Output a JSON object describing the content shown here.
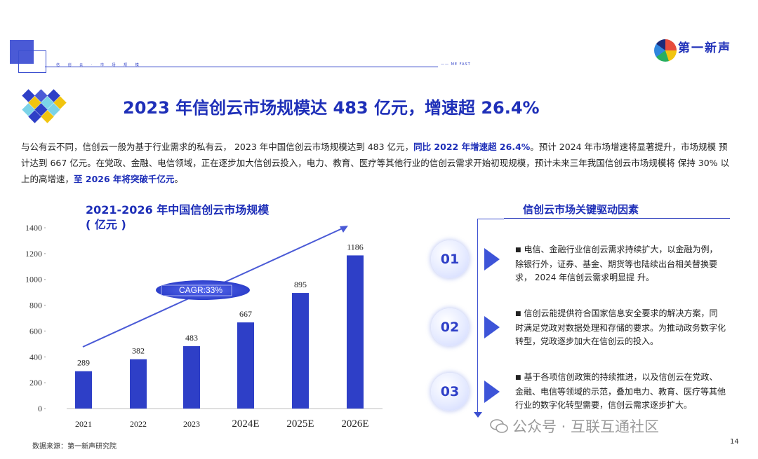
{
  "banner": {
    "text": "信 创 云 · 市 场 规 模",
    "me": "—— ME  FAST"
  },
  "brand": {
    "name": "第一新声"
  },
  "headline": "2023 年信创云市场规模达 483 亿元，增速超 26.4%",
  "intro": {
    "p1": "与公有云不同，信创云一般为基于行业需求的私有云， 2023 年中国信创云市场规模达到 483 亿元，",
    "h1": "同比 2022 年增速超 26.4%",
    "p2": "。预计 2024 年市场增速将显著提升，市场规模 预计达到 667 亿元。在党政、金融、电信领域，正在逐步加大信创云投入，电力、教育、医疗等其他行业的信创云需求开始初现规模，预计未来三年我国信创云市场规模将 保持 30% 以上的高增速，",
    "h2": "至 2026 年将突破千亿元",
    "p3": "。"
  },
  "chart_title": {
    "line1": "2021-2026 年中国信创云市场规模",
    "line2": "( 亿元 )"
  },
  "chart_data": {
    "type": "bar",
    "title": "2021-2026 年中国信创云市场规模 ( 亿元 )",
    "categories": [
      "2021",
      "2022",
      "2023",
      "2024E",
      "2025E",
      "2026E"
    ],
    "values": [
      289,
      382,
      483,
      667,
      895,
      1186
    ],
    "yticks": [
      0,
      200,
      400,
      600,
      800,
      1000,
      1200,
      1400
    ],
    "ylim": [
      0,
      1400
    ],
    "annotation": "CAGR:33%",
    "bar_color": "#2e3fc7",
    "grid": false
  },
  "drivers": {
    "title": "信创云市场关键驱动因素",
    "items": [
      {
        "num": "01",
        "text": "电信、金融行业信创云需求持续扩大，以金融为例，除银行外，证券、基金、期货等也陆续出台相关替换要求， 2024 年信创云需求明显提 升。"
      },
      {
        "num": "02",
        "text": "信创云能提供符合国家信息安全要求的解决方案，同时满足党政对数据处理和存储的要求。为推动政务数字化转型，党政逐步加大在信创云的投入。"
      },
      {
        "num": "03",
        "text": "基于各项信创政策的持续推进，以及信创云在党政、金融、电信等领域的示范，叠加电力、教育、医疗等其他行业的数字化转型需要，信创云需求逐步扩大。"
      }
    ],
    "bullet": "■"
  },
  "source": "数据来源：第一新声研究院",
  "page_number": "14",
  "watermark": "公众号 · 互联互通社区",
  "colors": {
    "accent": "#1e2fb8",
    "bar": "#2e3fc7",
    "circle_text": "#2e3fc7"
  }
}
